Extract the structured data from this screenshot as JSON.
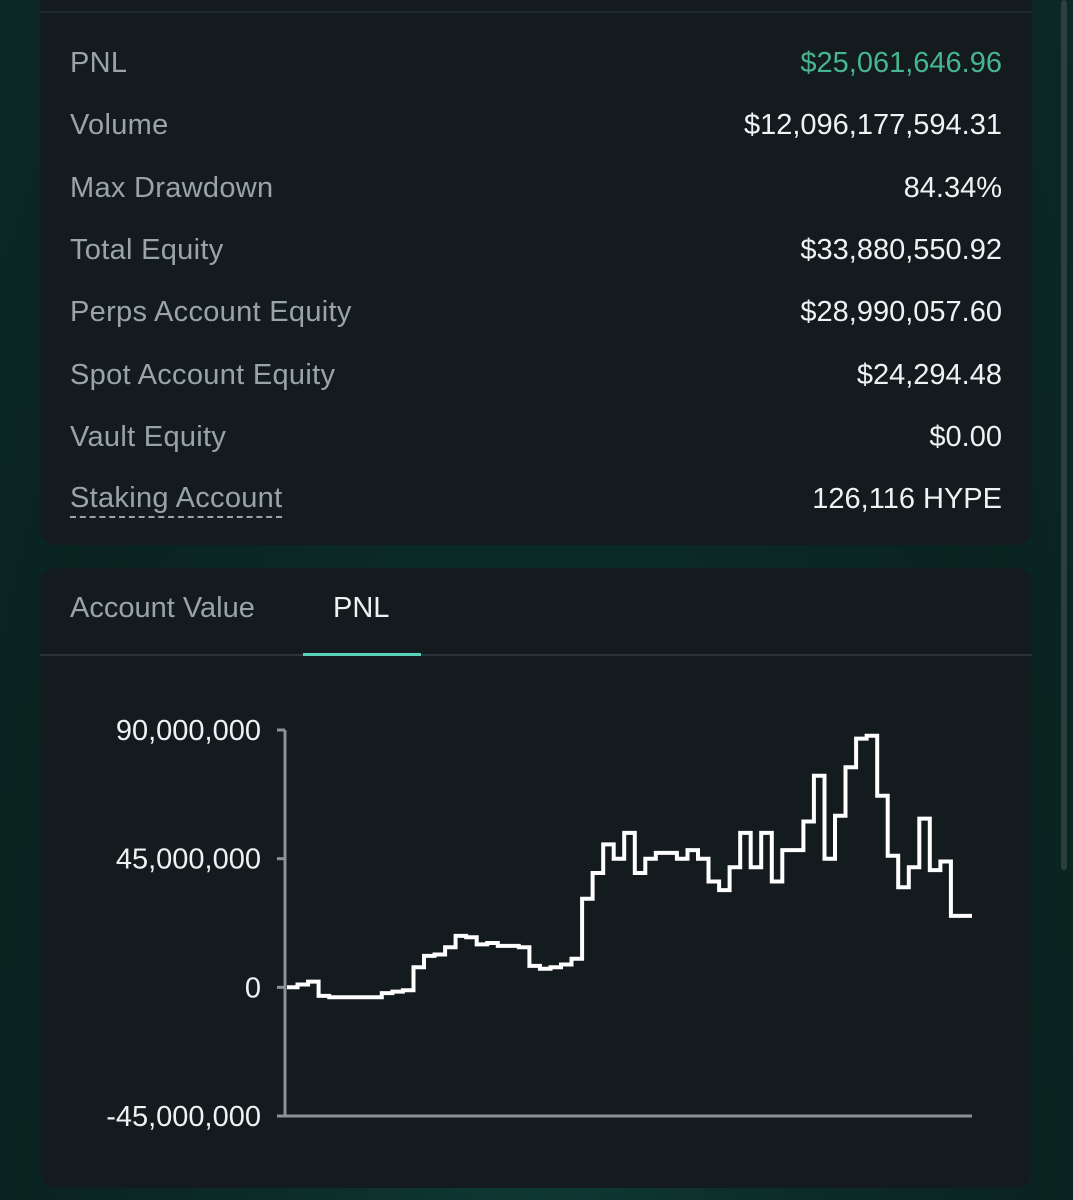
{
  "stats": [
    {
      "label": "PNL",
      "value": "$25,061,646.96",
      "tone": "positive"
    },
    {
      "label": "Volume",
      "value": "$12,096,177,594.31"
    },
    {
      "label": "Max Drawdown",
      "value": "84.34%"
    },
    {
      "label": "Total Equity",
      "value": "$33,880,550.92"
    },
    {
      "label": "Perps Account Equity",
      "value": "$28,990,057.60"
    },
    {
      "label": "Spot Account Equity",
      "value": "$24,294.48"
    },
    {
      "label": "Vault Equity",
      "value": "$0.00"
    },
    {
      "label": "Staking Account",
      "value": "126,116 HYPE"
    }
  ],
  "tabs": [
    {
      "label": "Account Value",
      "active": false
    },
    {
      "label": "PNL",
      "active": true
    }
  ],
  "colors": {
    "positive": "#47b58d",
    "accent": "#5ad3bb",
    "line": "#ffffff"
  },
  "chart_data": {
    "type": "line",
    "step": true,
    "ylim": [
      -45000000,
      90000000
    ],
    "y_ticks": [
      90000000,
      45000000,
      0,
      -45000000
    ],
    "y_tick_labels": [
      "90,000,000",
      "45,000,000",
      "0",
      "-45,000,000"
    ],
    "x_tick_labels": [],
    "series": [
      {
        "values": [
          0,
          1000000,
          2000000,
          -3000000,
          -3500000,
          -3500000,
          -3500000,
          -3500000,
          -3500000,
          -2000000,
          -1500000,
          -1000000,
          7000000,
          11000000,
          11500000,
          14000000,
          18000000,
          17500000,
          15000000,
          15500000,
          14500000,
          14500000,
          14000000,
          7500000,
          6500000,
          7000000,
          8000000,
          10000000,
          31000000,
          40000000,
          50000000,
          45000000,
          54000000,
          40000000,
          45000000,
          47000000,
          47000000,
          45000000,
          48000000,
          45000000,
          37000000,
          34000000,
          42000000,
          54000000,
          42000000,
          54000000,
          37000000,
          48000000,
          48000000,
          58000000,
          74000000,
          45000000,
          60000000,
          77000000,
          87000000,
          88000000,
          67000000,
          46000000,
          35000000,
          42000000,
          59000000,
          41000000,
          44000000,
          25000000,
          25000000
        ]
      }
    ]
  }
}
